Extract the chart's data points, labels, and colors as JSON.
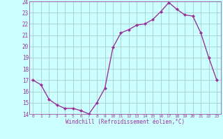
{
  "x": [
    0,
    1,
    2,
    3,
    4,
    5,
    6,
    7,
    8,
    9,
    10,
    11,
    12,
    13,
    14,
    15,
    16,
    17,
    18,
    19,
    20,
    21,
    22,
    23
  ],
  "y": [
    17.0,
    16.6,
    15.3,
    14.8,
    14.5,
    14.5,
    14.3,
    14.0,
    15.0,
    16.3,
    19.9,
    21.2,
    21.5,
    21.9,
    22.0,
    22.4,
    23.1,
    23.9,
    23.3,
    22.8,
    22.7,
    21.2,
    19.0,
    17.0
  ],
  "line_color": "#993399",
  "marker": "D",
  "marker_size": 2.0,
  "bg_color": "#ccffff",
  "grid_color": "#aacccc",
  "xlabel": "Windchill (Refroidissement éolien,°C)",
  "xlabel_color": "#993399",
  "tick_color": "#993399",
  "ylim": [
    14,
    24
  ],
  "xlim": [
    -0.5,
    23.5
  ],
  "yticks": [
    14,
    15,
    16,
    17,
    18,
    19,
    20,
    21,
    22,
    23,
    24
  ],
  "xticks": [
    0,
    1,
    2,
    3,
    4,
    5,
    6,
    7,
    8,
    9,
    10,
    11,
    12,
    13,
    14,
    15,
    16,
    17,
    18,
    19,
    20,
    21,
    22,
    23
  ],
  "line_width": 1.0,
  "spine_color": "#993399"
}
